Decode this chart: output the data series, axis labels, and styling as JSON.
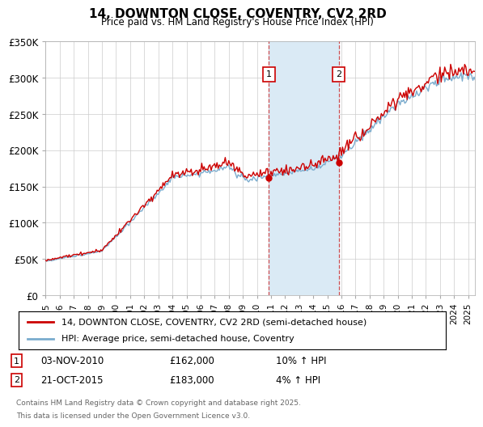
{
  "title": "14, DOWNTON CLOSE, COVENTRY, CV2 2RD",
  "subtitle": "Price paid vs. HM Land Registry's House Price Index (HPI)",
  "ylabel_ticks": [
    "£0",
    "£50K",
    "£100K",
    "£150K",
    "£200K",
    "£250K",
    "£300K",
    "£350K"
  ],
  "ytick_vals": [
    0,
    50000,
    100000,
    150000,
    200000,
    250000,
    300000,
    350000
  ],
  "ylim": [
    0,
    350000
  ],
  "xlim_start": 1995.0,
  "xlim_end": 2025.5,
  "sale1_date": 2010.84,
  "sale1_price": 162000,
  "sale1_label": "03-NOV-2010",
  "sale1_hpi": "10% ↑ HPI",
  "sale2_date": 2015.8,
  "sale2_price": 183000,
  "sale2_label": "21-OCT-2015",
  "sale2_hpi": "4% ↑ HPI",
  "line_color_property": "#cc0000",
  "line_color_hpi": "#7aacce",
  "shade_color": "#daeaf5",
  "marker_box_color": "#cc0000",
  "legend_label_property": "14, DOWNTON CLOSE, COVENTRY, CV2 2RD (semi-detached house)",
  "legend_label_hpi": "HPI: Average price, semi-detached house, Coventry",
  "footnote1": "Contains HM Land Registry data © Crown copyright and database right 2025.",
  "footnote2": "This data is licensed under the Open Government Licence v3.0.",
  "background_color": "#ffffff",
  "grid_color": "#cccccc",
  "xticks": [
    1995,
    1996,
    1997,
    1998,
    1999,
    2000,
    2001,
    2002,
    2003,
    2004,
    2005,
    2006,
    2007,
    2008,
    2009,
    2010,
    2011,
    2012,
    2013,
    2014,
    2015,
    2016,
    2017,
    2018,
    2019,
    2020,
    2021,
    2022,
    2023,
    2024,
    2025
  ]
}
